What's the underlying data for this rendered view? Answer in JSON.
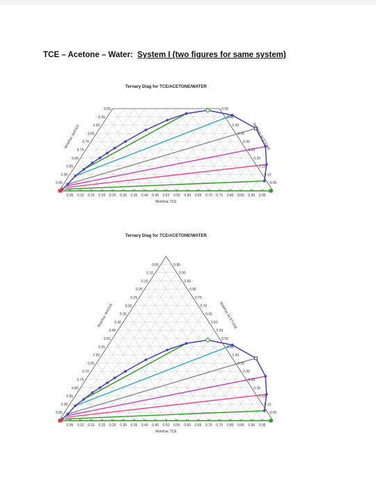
{
  "heading": {
    "prefix": "TCE – Acetone – Water:",
    "underlined": "System I (two figures for same system)"
  },
  "colors": {
    "grid": "#c9c9c9",
    "frame": "#555555",
    "binodal": "#4a4ab8",
    "tie_lines": [
      "#2e9a22",
      "#4a4ab8",
      "#2ea9c0",
      "#8c8c8c",
      "#c040c0",
      "#ee4488"
    ],
    "base_line": "#2e9a22",
    "endpoint_red": "#e0383a"
  },
  "figures": [
    {
      "title": "Ternary Diag for TCE/ACETONE/WATER",
      "bottom_axis_label": "Molefrac TCE",
      "left_axis_label": "Molefrac WATER",
      "right_axis_label": "Molefrac ACETONE",
      "view": "partial",
      "bottom_ticks": [
        "0.05",
        "0.10",
        "0.15",
        "0.20",
        "0.25",
        "0.30",
        "0.35",
        "0.40",
        "0.45",
        "0.50",
        "0.55",
        "0.60",
        "0.65",
        "0.70",
        "0.75",
        "0.80",
        "0.85",
        "0.90",
        "0.95"
      ],
      "left_ticks": [
        "0.50",
        "0.55",
        "0.60",
        "0.65",
        "0.70",
        "0.75",
        "0.80",
        "0.85",
        "0.90",
        "0.95"
      ],
      "right_ticks": [
        "0.50",
        "0.45",
        "0.40",
        "0.35",
        "0.30",
        "0.25",
        "0.20",
        "0.15",
        "0.10",
        "0.05"
      ]
    },
    {
      "title": "Ternary Diag for TCE/ACETONE/WATER",
      "bottom_axis_label": "Molefrac TCE",
      "left_axis_label": "Molefrac WATER",
      "right_axis_label": "Molefrac ACETONE",
      "view": "full",
      "bottom_ticks": [
        "0.05",
        "0.10",
        "0.15",
        "0.20",
        "0.25",
        "0.30",
        "0.35",
        "0.40",
        "0.45",
        "0.50",
        "0.55",
        "0.60",
        "0.65",
        "0.70",
        "0.75",
        "0.80",
        "0.85",
        "0.90",
        "0.95"
      ],
      "left_ticks": [
        "0.05",
        "0.10",
        "0.15",
        "0.20",
        "0.25",
        "0.30",
        "0.35",
        "0.40",
        "0.45",
        "0.50",
        "0.55",
        "0.60",
        "0.65",
        "0.70",
        "0.75",
        "0.80",
        "0.85",
        "0.90",
        "0.95"
      ],
      "right_ticks": [
        "0.95",
        "0.90",
        "0.85",
        "0.80",
        "0.75",
        "0.70",
        "0.65",
        "0.60",
        "0.55",
        "0.50",
        "0.45",
        "0.40",
        "0.35",
        "0.30",
        "0.25",
        "0.20",
        "0.15",
        "0.10",
        "0.05"
      ]
    }
  ],
  "chart_data": [
    {
      "type": "scatter",
      "title": "Ternary Diag for TCE/ACETONE/WATER",
      "xlabel": "Molefrac TCE",
      "left_label": "Molefrac WATER",
      "right_label": "Molefrac ACETONE",
      "acetone_range": [
        0,
        0.5
      ],
      "binodal_curve": {
        "tce": [
          0.01,
          0.02,
          0.03,
          0.05,
          0.07,
          0.09,
          0.11,
          0.13,
          0.16,
          0.22,
          0.29,
          0.36,
          0.45,
          0.58,
          0.73,
          0.83,
          0.89,
          0.93
        ],
        "acetone": [
          0.01,
          0.04,
          0.09,
          0.13,
          0.17,
          0.2,
          0.23,
          0.26,
          0.3,
          0.37,
          0.43,
          0.47,
          0.49,
          0.46,
          0.38,
          0.27,
          0.16,
          0.06
        ]
      },
      "tie_lines": [
        {
          "raffinate": {
            "tce": 0.02,
            "acetone": 0.0
          },
          "extract": {
            "tce": 0.98,
            "acetone": 0.0
          }
        },
        {
          "raffinate": {
            "tce": 0.02,
            "acetone": 0.01
          },
          "extract": {
            "tce": 0.93,
            "acetone": 0.06
          }
        },
        {
          "raffinate": {
            "tce": 0.02,
            "acetone": 0.02
          },
          "extract": {
            "tce": 0.89,
            "acetone": 0.16
          }
        },
        {
          "raffinate": {
            "tce": 0.02,
            "acetone": 0.03
          },
          "extract": {
            "tce": 0.83,
            "acetone": 0.27
          }
        },
        {
          "raffinate": {
            "tce": 0.02,
            "acetone": 0.04
          },
          "extract": {
            "tce": 0.73,
            "acetone": 0.38
          }
        },
        {
          "raffinate": {
            "tce": 0.03,
            "acetone": 0.09
          },
          "extract": {
            "tce": 0.58,
            "acetone": 0.46
          }
        },
        {
          "raffinate": {
            "tce": 0.05,
            "acetone": 0.13
          },
          "extract": {
            "tce": 0.36,
            "acetone": 0.47
          }
        }
      ]
    },
    {
      "type": "scatter",
      "title": "Ternary Diag for TCE/ACETONE/WATER",
      "xlabel": "Molefrac TCE",
      "left_label": "Molefrac WATER",
      "right_label": "Molefrac ACETONE",
      "acetone_range": [
        0,
        1
      ],
      "binodal_curve": {
        "tce": [
          0.01,
          0.02,
          0.03,
          0.05,
          0.07,
          0.09,
          0.11,
          0.13,
          0.16,
          0.22,
          0.29,
          0.36,
          0.45,
          0.58,
          0.73,
          0.83,
          0.89,
          0.93
        ],
        "acetone": [
          0.01,
          0.04,
          0.09,
          0.13,
          0.17,
          0.2,
          0.23,
          0.26,
          0.3,
          0.37,
          0.43,
          0.47,
          0.49,
          0.46,
          0.38,
          0.27,
          0.16,
          0.06
        ]
      },
      "tie_lines": [
        {
          "raffinate": {
            "tce": 0.02,
            "acetone": 0.0
          },
          "extract": {
            "tce": 0.98,
            "acetone": 0.0
          }
        },
        {
          "raffinate": {
            "tce": 0.02,
            "acetone": 0.01
          },
          "extract": {
            "tce": 0.93,
            "acetone": 0.06
          }
        },
        {
          "raffinate": {
            "tce": 0.02,
            "acetone": 0.02
          },
          "extract": {
            "tce": 0.89,
            "acetone": 0.16
          }
        },
        {
          "raffinate": {
            "tce": 0.02,
            "acetone": 0.03
          },
          "extract": {
            "tce": 0.83,
            "acetone": 0.27
          }
        },
        {
          "raffinate": {
            "tce": 0.02,
            "acetone": 0.04
          },
          "extract": {
            "tce": 0.73,
            "acetone": 0.38
          }
        },
        {
          "raffinate": {
            "tce": 0.03,
            "acetone": 0.09
          },
          "extract": {
            "tce": 0.58,
            "acetone": 0.46
          }
        },
        {
          "raffinate": {
            "tce": 0.05,
            "acetone": 0.13
          },
          "extract": {
            "tce": 0.36,
            "acetone": 0.47
          }
        }
      ]
    }
  ]
}
